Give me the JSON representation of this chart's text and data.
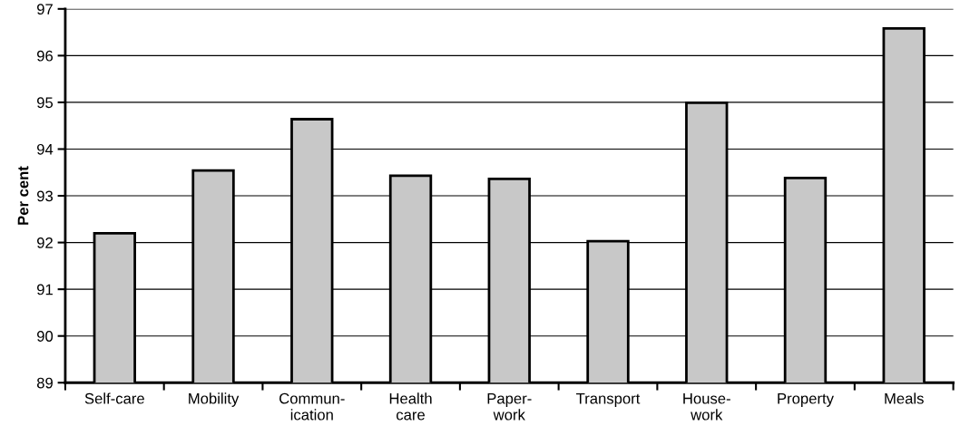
{
  "chart_data": {
    "type": "bar",
    "ylabel": "Per cent",
    "categories": [
      "Self-care",
      "Mobility",
      "Commun-\nication",
      "Health\ncare",
      "Paper-\nwork",
      "Transport",
      "House-\nwork",
      "Property",
      "Meals"
    ],
    "values": [
      92.2,
      93.54,
      94.64,
      93.43,
      93.36,
      92.03,
      94.99,
      93.38,
      96.58
    ],
    "color": "#c8c8c8",
    "ylim": [
      89,
      97
    ],
    "yticks": [
      89,
      90,
      91,
      92,
      93,
      94,
      95,
      96,
      97
    ],
    "grid": "y"
  }
}
